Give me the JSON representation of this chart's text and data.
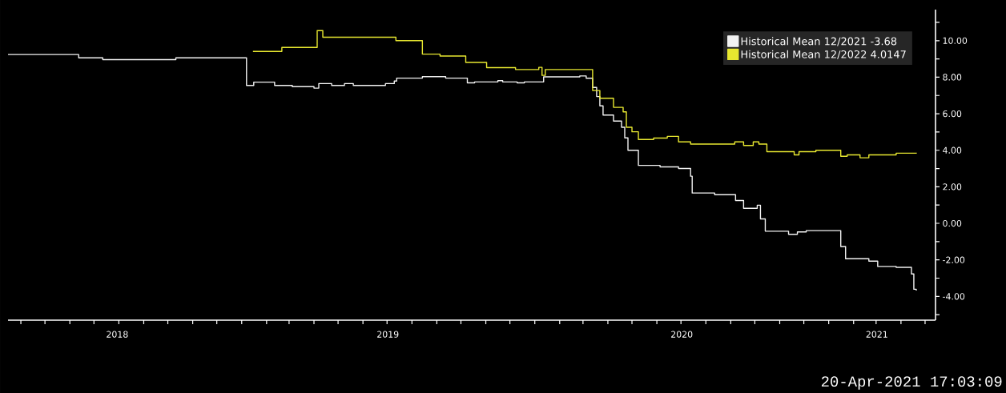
{
  "chart_data": {
    "type": "step",
    "legend": "top right",
    "xlim": [
      "2018-03-16",
      "2021-05-14"
    ],
    "xticks": [
      {
        "value": "2018-04-01",
        "label": null
      },
      {
        "value": "2018-05-01",
        "label": null
      },
      {
        "value": "2018-06-01",
        "label": null
      },
      {
        "value": "2018-07-01",
        "label": null
      },
      {
        "value": "2018-07-30",
        "label": "2018"
      },
      {
        "value": "2018-08-01",
        "label": null
      },
      {
        "value": "2018-09-01",
        "label": null
      },
      {
        "value": "2018-10-01",
        "label": null
      },
      {
        "value": "2018-11-01",
        "label": null
      },
      {
        "value": "2018-12-01",
        "label": null
      },
      {
        "value": "2019-01-01",
        "label": null
      },
      {
        "value": "2019-02-01",
        "label": null
      },
      {
        "value": "2019-03-01",
        "label": null
      },
      {
        "value": "2019-04-01",
        "label": null
      },
      {
        "value": "2019-05-01",
        "label": null
      },
      {
        "value": "2019-06-01",
        "label": null
      },
      {
        "value": "2019-07-01",
        "label": null
      },
      {
        "value": "2019-07-02",
        "label": "2019"
      },
      {
        "value": "2019-08-01",
        "label": null
      },
      {
        "value": "2019-09-01",
        "label": null
      },
      {
        "value": "2019-10-01",
        "label": null
      },
      {
        "value": "2019-11-01",
        "label": null
      },
      {
        "value": "2019-12-01",
        "label": null
      },
      {
        "value": "2020-01-01",
        "label": null
      },
      {
        "value": "2020-02-01",
        "label": null
      },
      {
        "value": "2020-03-01",
        "label": null
      },
      {
        "value": "2020-04-01",
        "label": null
      },
      {
        "value": "2020-05-01",
        "label": null
      },
      {
        "value": "2020-06-01",
        "label": null
      },
      {
        "value": "2020-07-01",
        "label": null
      },
      {
        "value": "2020-07-02",
        "label": "2020"
      },
      {
        "value": "2020-08-01",
        "label": null
      },
      {
        "value": "2020-09-01",
        "label": null
      },
      {
        "value": "2020-10-01",
        "label": null
      },
      {
        "value": "2020-11-01",
        "label": null
      },
      {
        "value": "2020-12-01",
        "label": null
      },
      {
        "value": "2021-01-01",
        "label": null
      },
      {
        "value": "2021-02-01",
        "label": null
      },
      {
        "value": "2021-03-01",
        "label": null
      },
      {
        "value": "2021-03-02",
        "label": "2021"
      },
      {
        "value": "2021-04-01",
        "label": null
      },
      {
        "value": "2021-05-01",
        "label": null
      }
    ],
    "ylim": [
      -5.3,
      11.7
    ],
    "yticks": [
      {
        "value": -5,
        "label": null
      },
      {
        "value": -4,
        "label": "-4.00"
      },
      {
        "value": -3,
        "label": null
      },
      {
        "value": -2,
        "label": "-2.00"
      },
      {
        "value": -1,
        "label": null
      },
      {
        "value": 0,
        "label": "0.00"
      },
      {
        "value": 1,
        "label": null
      },
      {
        "value": 2,
        "label": "2.00"
      },
      {
        "value": 3,
        "label": null
      },
      {
        "value": 4,
        "label": "4.00"
      },
      {
        "value": 5,
        "label": null
      },
      {
        "value": 6,
        "label": "6.00"
      },
      {
        "value": 7,
        "label": null
      },
      {
        "value": 8,
        "label": "8.00"
      },
      {
        "value": 9,
        "label": null
      },
      {
        "value": 10,
        "label": "10.00"
      },
      {
        "value": 11,
        "label": null
      }
    ],
    "annotations": [
      "20-Apr-2021 17:03:09"
    ],
    "series": [
      {
        "name": "Historical Mean 12/2021  -3.68",
        "color": "#f2f2f2",
        "x": [
          "2018-03-16",
          "2018-06-12",
          "2018-07-12",
          "2018-10-11",
          "2019-01-07",
          "2019-01-16",
          "2019-02-11",
          "2019-03-05",
          "2019-04-01",
          "2019-04-07",
          "2019-04-23",
          "2019-05-09",
          "2019-05-20",
          "2019-06-29",
          "2019-07-10",
          "2019-07-13",
          "2019-08-14",
          "2019-09-12",
          "2019-10-09",
          "2019-10-18",
          "2019-11-16",
          "2019-11-22",
          "2019-12-10",
          "2019-12-19",
          "2020-01-12",
          "2020-02-26",
          "2020-03-05",
          "2020-03-13",
          "2020-03-18",
          "2020-03-22",
          "2020-03-26",
          "2020-04-08",
          "2020-04-18",
          "2020-04-22",
          "2020-04-26",
          "2020-05-09",
          "2020-06-05",
          "2020-06-28",
          "2020-07-13",
          "2020-07-15",
          "2020-08-12",
          "2020-09-07",
          "2020-09-17",
          "2020-10-04",
          "2020-10-08",
          "2020-10-14",
          "2020-11-12",
          "2020-11-23",
          "2020-12-04",
          "2021-01-10",
          "2021-01-16",
          "2021-01-22",
          "2021-02-20",
          "2021-03-03",
          "2021-03-26",
          "2021-04-14",
          "2021-04-17",
          "2021-04-20"
        ],
        "values": [
          9.24,
          9.06,
          8.96,
          9.06,
          7.55,
          7.73,
          7.55,
          7.48,
          7.4,
          7.65,
          7.55,
          7.65,
          7.55,
          7.65,
          7.79,
          7.95,
          8.03,
          7.95,
          7.69,
          7.74,
          7.81,
          7.74,
          7.69,
          7.74,
          8.02,
          8.07,
          7.94,
          7.44,
          6.94,
          6.43,
          5.93,
          5.6,
          5.26,
          4.68,
          4.0,
          3.17,
          3.09,
          3.0,
          2.58,
          1.66,
          1.57,
          1.25,
          0.82,
          0.99,
          0.24,
          -0.43,
          -0.6,
          -0.47,
          -0.4,
          -0.4,
          -1.27,
          -1.94,
          -2.07,
          -2.36,
          -2.41,
          -2.77,
          -3.61,
          -3.68
        ]
      },
      {
        "name": "Historical Mean 12/2022  4.0147",
        "color": "#e8e830",
        "x": [
          "2019-01-15",
          "2019-02-20",
          "2019-04-05",
          "2019-04-12",
          "2019-07-12",
          "2019-08-14",
          "2019-09-05",
          "2019-10-07",
          "2019-11-02",
          "2019-12-08",
          "2020-01-06",
          "2020-01-10",
          "2020-01-14",
          "2020-03-13",
          "2020-03-22",
          "2020-04-08",
          "2020-04-20",
          "2020-04-24",
          "2020-05-01",
          "2020-05-09",
          "2020-05-28",
          "2020-06-14",
          "2020-06-28",
          "2020-07-13",
          "2020-09-06",
          "2020-09-17",
          "2020-09-29",
          "2020-10-06",
          "2020-10-16",
          "2020-11-19",
          "2020-11-25",
          "2020-12-16",
          "2021-01-16",
          "2021-01-24",
          "2021-02-09",
          "2021-02-20",
          "2021-03-26",
          "2021-04-20"
        ],
        "values": [
          9.41,
          9.63,
          10.55,
          10.19,
          10.0,
          9.26,
          9.16,
          8.81,
          8.52,
          8.42,
          8.54,
          8.1,
          8.42,
          7.27,
          6.85,
          6.35,
          6.1,
          5.26,
          5.01,
          4.59,
          4.67,
          4.76,
          4.46,
          4.34,
          4.46,
          4.26,
          4.46,
          4.34,
          3.92,
          3.75,
          3.92,
          4.0,
          3.67,
          3.75,
          3.59,
          3.75,
          3.84,
          3.87
        ]
      }
    ]
  }
}
